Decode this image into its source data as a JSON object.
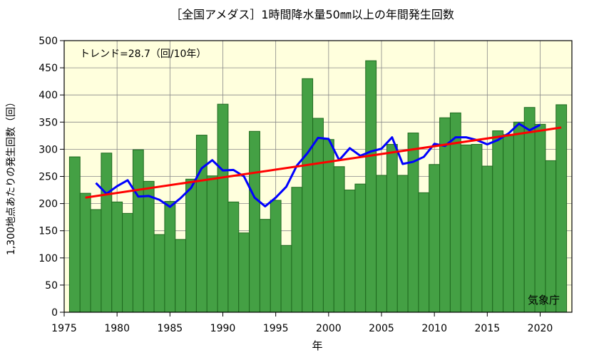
{
  "chart_data": {
    "type": "bar",
    "title": "［全国アメダス］1時間降水量50㎜以上の年間発生回数",
    "xlabel": "年",
    "ylabel": "1,300地点あたりの発生回数（回）",
    "annotation": "トレンド=28.7（回/10年）",
    "source": "気象庁",
    "xlim": [
      1975,
      2023
    ],
    "ylim": [
      0,
      500
    ],
    "xticks": [
      1975,
      1980,
      1985,
      1990,
      1995,
      2000,
      2005,
      2010,
      2015,
      2020
    ],
    "yticks": [
      0,
      50,
      100,
      150,
      200,
      250,
      300,
      350,
      400,
      450,
      500
    ],
    "grid": true,
    "colors": {
      "plot_background": "#ffffdd",
      "bar_fill": "#44a044",
      "bar_edge": "#1f6a1f",
      "moving_average": "#0000ff",
      "trend": "#ff0000"
    },
    "x": [
      1976,
      1977,
      1978,
      1979,
      1980,
      1981,
      1982,
      1983,
      1984,
      1985,
      1986,
      1987,
      1988,
      1989,
      1990,
      1991,
      1992,
      1993,
      1994,
      1995,
      1996,
      1997,
      1998,
      1999,
      2000,
      2001,
      2002,
      2003,
      2004,
      2005,
      2006,
      2007,
      2008,
      2009,
      2010,
      2011,
      2012,
      2013,
      2014,
      2015,
      2016,
      2017,
      2018,
      2019,
      2020,
      2021,
      2022
    ],
    "values": [
      286,
      219,
      189,
      293,
      203,
      182,
      299,
      241,
      143,
      204,
      134,
      245,
      326,
      251,
      383,
      203,
      146,
      333,
      171,
      206,
      123,
      230,
      430,
      357,
      318,
      268,
      225,
      236,
      463,
      252,
      309,
      252,
      330,
      220,
      272,
      358,
      367,
      308,
      309,
      269,
      334,
      327,
      350,
      377,
      346,
      279,
      382
    ],
    "series": [
      {
        "values": [
          286,
          219,
          189,
          293,
          203,
          182,
          299,
          241,
          143,
          204,
          134,
          245,
          326,
          251,
          383,
          203,
          146,
          333,
          171,
          206,
          123,
          230,
          430,
          357,
          318,
          268,
          225,
          236,
          463,
          252,
          309,
          252,
          330,
          220,
          272,
          358,
          367,
          308,
          309,
          269,
          334,
          327,
          350,
          377,
          346,
          279,
          382
        ]
      },
      {
        "x": [
          1978,
          1979,
          1980,
          1981,
          1982,
          1983,
          1984,
          1985,
          1986,
          1987,
          1988,
          1989,
          1990,
          1991,
          1992,
          1993,
          1994,
          1995,
          1996,
          1997,
          1998,
          1999,
          2000,
          2001,
          2002,
          2003,
          2004,
          2005,
          2006,
          2007,
          2008,
          2009,
          2010,
          2011,
          2012,
          2013,
          2014,
          2015,
          2016,
          2017,
          2018,
          2019,
          2020
        ],
        "values": [
          238,
          218,
          232,
          243,
          213,
          214,
          207,
          194,
          210,
          229,
          265,
          280,
          261,
          262,
          250,
          211,
          195,
          211,
          231,
          270,
          293,
          321,
          319,
          280,
          302,
          288,
          296,
          301,
          322,
          273,
          277,
          286,
          310,
          306,
          322,
          322,
          317,
          309,
          317,
          329,
          347,
          335,
          345
        ]
      },
      {
        "x": [
          1977,
          2022
        ],
        "values": [
          211,
          340
        ]
      }
    ]
  }
}
